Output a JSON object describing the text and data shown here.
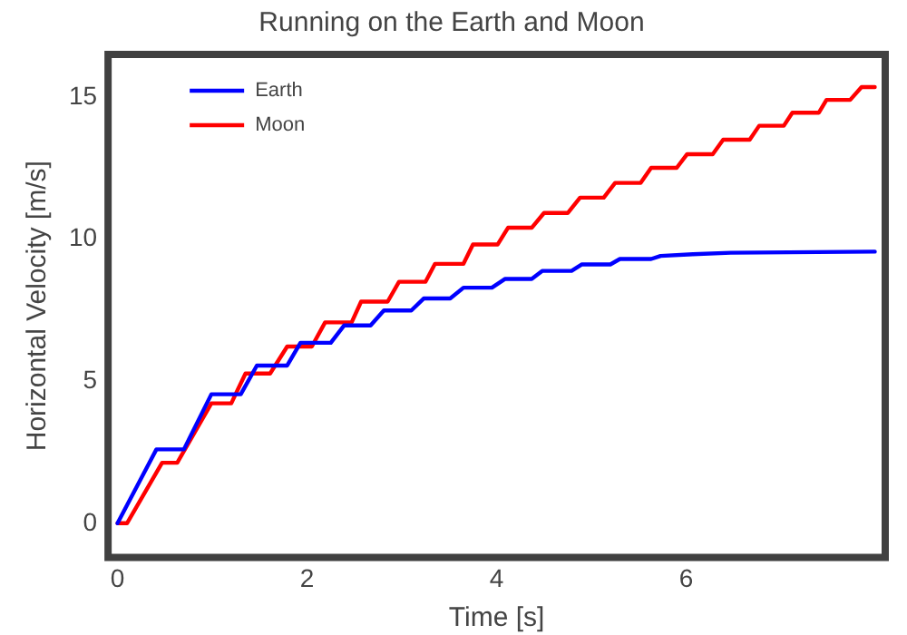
{
  "chart_data": {
    "type": "line",
    "title": "Running on the Earth and Moon",
    "xlabel": "Time [s]",
    "ylabel": "Horizontal Velocity [m/s]",
    "xlim": [
      -0.1,
      8.1
    ],
    "ylim": [
      -1.2,
      16.5
    ],
    "xticks": [
      0,
      2,
      4,
      6
    ],
    "yticks": [
      0,
      5,
      10,
      15
    ],
    "grid": false,
    "legend": "top left",
    "marker": "none",
    "line_style": "solid",
    "series": [
      {
        "name": "Earth",
        "color": "#0000ff",
        "x": [
          0,
          0.41,
          0.7,
          0.99,
          1.3,
          1.47,
          1.79,
          1.93,
          2.25,
          2.39,
          2.67,
          2.81,
          3.1,
          3.23,
          3.51,
          3.65,
          3.95,
          4.09,
          4.37,
          4.48,
          4.79,
          4.9,
          5.2,
          5.3,
          5.63,
          5.73,
          6.07,
          6.47,
          7.99
        ],
        "values": [
          0,
          2.6,
          2.6,
          4.54,
          4.54,
          5.55,
          5.55,
          6.35,
          6.35,
          6.96,
          6.96,
          7.49,
          7.49,
          7.91,
          7.91,
          8.29,
          8.29,
          8.6,
          8.6,
          8.88,
          8.88,
          9.11,
          9.11,
          9.3,
          9.3,
          9.41,
          9.47,
          9.52,
          9.56
        ]
      },
      {
        "name": "Moon",
        "color": "#ff0000",
        "x": [
          0,
          0.1,
          0.47,
          0.63,
          0.99,
          1.2,
          1.35,
          1.61,
          1.79,
          2.05,
          2.19,
          2.47,
          2.57,
          2.85,
          2.97,
          3.25,
          3.35,
          3.65,
          3.75,
          4.01,
          4.12,
          4.37,
          4.5,
          4.75,
          4.88,
          5.13,
          5.25,
          5.52,
          5.63,
          5.9,
          6.01,
          6.28,
          6.39,
          6.67,
          6.77,
          7.03,
          7.12,
          7.4,
          7.48,
          7.73,
          7.85,
          7.99
        ],
        "values": [
          0,
          0,
          2.13,
          2.13,
          4.22,
          4.22,
          5.27,
          5.27,
          6.22,
          6.22,
          7.07,
          7.07,
          7.8,
          7.8,
          8.5,
          8.5,
          9.13,
          9.13,
          9.81,
          9.81,
          10.4,
          10.4,
          10.92,
          10.92,
          11.46,
          11.46,
          11.98,
          11.98,
          12.51,
          12.51,
          12.99,
          12.99,
          13.5,
          13.5,
          13.99,
          13.99,
          14.45,
          14.45,
          14.9,
          14.9,
          15.35,
          15.35
        ]
      }
    ]
  }
}
